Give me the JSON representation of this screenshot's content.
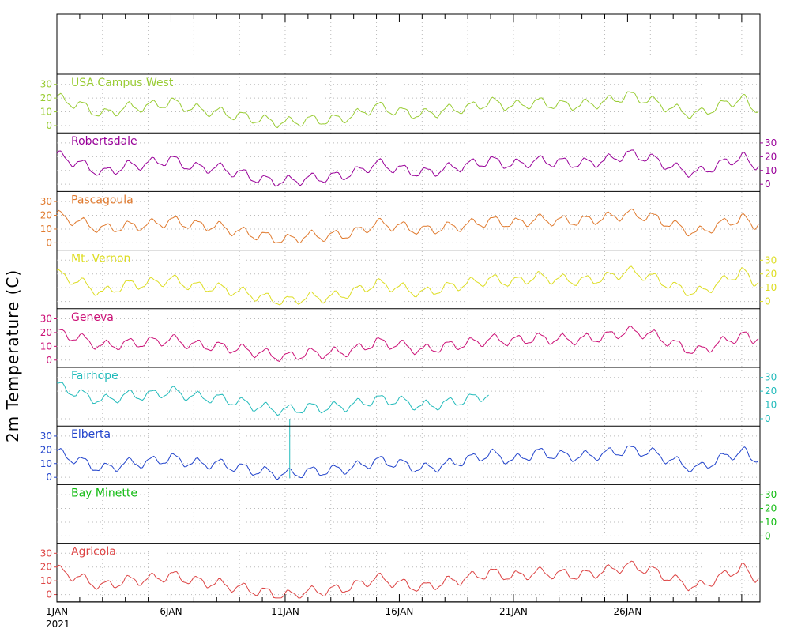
{
  "ylabel": "2m Temperature (C)",
  "chart_data": {
    "type": "line",
    "ylabel": "2m Temperature (C)",
    "x_start": "1JAN 2021",
    "x_tick_labels": [
      "1JAN",
      "6JAN",
      "11JAN",
      "16JAN",
      "21JAN",
      "26JAN"
    ],
    "x_year_label": "2021",
    "x_unit": "day of January 2021",
    "xlim": [
      1,
      31.8
    ],
    "ylim": [
      -3,
      35
    ],
    "yticks": [
      0,
      10,
      20,
      30
    ],
    "grid": true,
    "daily_x": [
      1,
      2,
      3,
      4,
      5,
      6,
      7,
      8,
      9,
      10,
      11,
      12,
      13,
      14,
      15,
      16,
      17,
      18,
      19,
      20,
      21,
      22,
      23,
      24,
      25,
      26,
      27,
      28,
      29,
      30,
      31,
      31.8
    ],
    "series": [
      {
        "name": "USA Campus West",
        "color": "#99cc33",
        "axis_side": "left",
        "values": [
          20,
          15,
          8,
          13,
          14,
          17,
          12,
          10,
          7,
          4,
          2,
          4,
          4,
          7,
          14,
          10,
          8,
          11,
          13,
          17,
          14,
          17,
          15,
          15,
          17,
          22,
          18,
          12,
          8,
          14,
          20,
          10
        ]
      },
      {
        "name": "Robertsdale",
        "color": "#990099",
        "axis_side": "right",
        "values": [
          21,
          15,
          8,
          13,
          15,
          18,
          12,
          12,
          8,
          3,
          2,
          4,
          5,
          8,
          15,
          11,
          8,
          11,
          14,
          17,
          14,
          17,
          16,
          15,
          17,
          22,
          19,
          12,
          8,
          14,
          20,
          12
        ]
      },
      {
        "name": "Pascagoula",
        "color": "#e07a2e",
        "axis_side": "left",
        "values": [
          20,
          15,
          10,
          12,
          13,
          16,
          13,
          12,
          8,
          5,
          2,
          5,
          5,
          7,
          14,
          12,
          9,
          11,
          13,
          16,
          14,
          17,
          16,
          16,
          18,
          21,
          19,
          13,
          7,
          13,
          18,
          12
        ]
      },
      {
        "name": "Mt. Vernon",
        "color": "#dddd22",
        "axis_side": "right",
        "values": [
          20,
          14,
          6,
          12,
          13,
          16,
          11,
          10,
          7,
          3,
          0,
          3,
          3,
          7,
          13,
          10,
          6,
          10,
          13,
          16,
          14,
          18,
          16,
          15,
          17,
          22,
          18,
          11,
          6,
          13,
          22,
          12
        ]
      },
      {
        "name": "Geneva",
        "color": "#cc1177",
        "axis_side": "left",
        "values": [
          20,
          16,
          10,
          12,
          13,
          15,
          11,
          10,
          8,
          5,
          2,
          5,
          5,
          7,
          13,
          11,
          7,
          10,
          12,
          15,
          14,
          16,
          15,
          15,
          17,
          21,
          19,
          12,
          6,
          12,
          18,
          15
        ]
      },
      {
        "name": "Fairhope",
        "color": "#22bbbb",
        "axis_side": "right",
        "values": [
          24,
          18,
          13,
          17,
          17,
          20,
          16,
          15,
          12,
          8,
          6,
          8,
          8,
          10,
          14,
          13,
          9,
          11,
          14,
          18,
          null,
          null,
          null,
          null,
          null,
          null,
          null,
          null,
          null,
          null,
          null,
          null
        ]
      },
      {
        "name": "Elberta",
        "color": "#2244cc",
        "axis_side": "left",
        "values": [
          18,
          12,
          6,
          10,
          11,
          14,
          10,
          10,
          7,
          4,
          2,
          4,
          5,
          7,
          12,
          10,
          6,
          9,
          13,
          17,
          12,
          18,
          16,
          15,
          17,
          20,
          18,
          12,
          6,
          13,
          19,
          12
        ]
      },
      {
        "name": "Bay Minette",
        "color": "#11bb11",
        "axis_side": "right",
        "values": [
          null,
          null,
          null,
          null,
          null,
          null,
          null,
          null,
          null,
          null,
          null,
          null,
          null,
          null,
          null,
          null,
          null,
          null,
          null,
          null,
          null,
          null,
          null,
          null,
          null,
          null,
          null,
          null,
          null,
          null,
          null,
          null
        ]
      },
      {
        "name": "Agricola",
        "color": "#dd4444",
        "axis_side": "left",
        "values": [
          18,
          12,
          6,
          10,
          11,
          14,
          10,
          8,
          5,
          2,
          -1,
          2,
          3,
          6,
          12,
          8,
          5,
          9,
          12,
          16,
          13,
          16,
          15,
          14,
          17,
          21,
          18,
          11,
          5,
          12,
          20,
          10
        ]
      }
    ]
  }
}
